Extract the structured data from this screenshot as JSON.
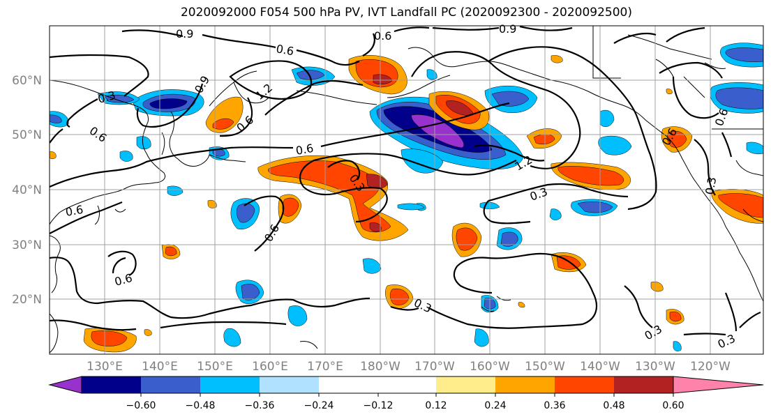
{
  "title": "2020092000 F054 500 hPa PV, IVT Landfall PC (2020092300 - 2020092500)",
  "map": {
    "lat_labels": [
      "60°N",
      "50°N",
      "40°N",
      "30°N",
      "20°N"
    ],
    "lon_labels": [
      "130°E",
      "140°E",
      "150°E",
      "160°E",
      "170°E",
      "180°W",
      "170°W",
      "160°W",
      "150°W",
      "140°W",
      "130°W",
      "120°W"
    ],
    "gridline_color": "#a0a0a0",
    "coastline_color": "#000000"
  },
  "contours": {
    "labels": [
      "0.9",
      "0.6",
      "0.9",
      "0.6",
      "0.3",
      "0.9",
      "1.2",
      "0.6",
      "0.6",
      "0.6",
      "1.2",
      "0.6",
      "0.3",
      "0.3",
      "0.6",
      "0.6",
      "0.6",
      "0.6",
      "0.3",
      "0.3",
      "0.3",
      "0.3"
    ]
  },
  "colorbar": {
    "ticks": [
      "−0.60",
      "−0.48",
      "−0.36",
      "−0.24",
      "−0.12",
      "0.12",
      "0.24",
      "0.36",
      "0.48",
      "0.60"
    ],
    "colors": [
      "#9932cc",
      "#00008b",
      "#3a5fcd",
      "#00bfff",
      "#b0e2ff",
      "#ffffff",
      "#ffec8b",
      "#ffa500",
      "#ff4500",
      "#b22222",
      "#ff82ab"
    ]
  }
}
